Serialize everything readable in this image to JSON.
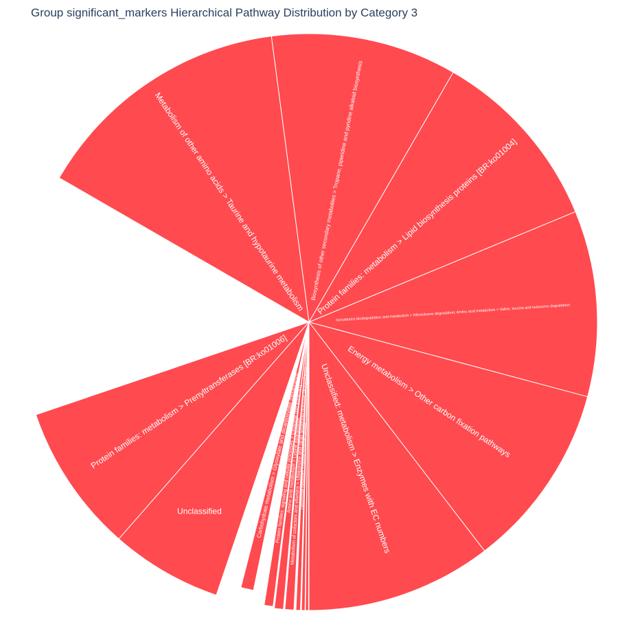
{
  "title": "Group significant_markers Hierarchical Pathway Distribution by Category 3",
  "chart_data": {
    "type": "pie",
    "subtype": "barpolar",
    "title": "Group significant_markers Hierarchical Pathway Distribution by Category 3",
    "color": "#ff4a4f",
    "line_color": "#ffffff",
    "max_value": 10,
    "slices": [
      {
        "label": "Unclassified: metabolism > Enzymes with EC numbers",
        "value": 10.0,
        "start_deg": -90.0,
        "end_deg": -52.5
      },
      {
        "label": "Energy metabolism > Other carbon fixation pathways",
        "value": 10.0,
        "start_deg": -52.5,
        "end_deg": -15.0
      },
      {
        "label": "Xenobiotics biodegradation and metabolism > Nitrotoluene degradation; Amino acid metabolism > Valine, leucine and isoleucine degradation",
        "value": 10.0,
        "start_deg": -15.0,
        "end_deg": 22.5
      },
      {
        "label": "Protein families: metabolism > Lipid biosynthesis proteins [BR:ko01004]",
        "value": 10.0,
        "start_deg": 22.5,
        "end_deg": 60.0
      },
      {
        "label": "Biosynthesis of other secondary metabolites > Tropane, piperidine and pyridine alkaloid biosynthesis",
        "value": 10.0,
        "start_deg": 60.0,
        "end_deg": 97.5
      },
      {
        "label": "Metabolism of other amino acids > Taurine and hypotaurine metabolism",
        "value": 10.0,
        "start_deg": 97.5,
        "end_deg": 150.0
      },
      {
        "label": "Protein families: metabolism > Prenyltransferases [BR:ko01006]",
        "value": 10.0,
        "start_deg": 198.75,
        "end_deg": 228.75
      },
      {
        "label": "Unclassified",
        "value": 10.0,
        "start_deg": 228.75,
        "end_deg": 251.25
      },
      {
        "label": "Carbohydrate metabolism > Glyoxylate and dicarboxylate metabolism",
        "value": 9.5,
        "start_deg": 255.6,
        "end_deg": 258.3
      },
      {
        "label": "Protein families: signaling and cellular processes > Exosome [BR:ko04147]",
        "value": 9.94,
        "start_deg": 261.0,
        "end_deg": 262.8
      },
      {
        "label": "Amino acid metabolism > Lysine degradation",
        "value": 10.0,
        "start_deg": 263.1,
        "end_deg": 264.9
      },
      {
        "label": "Metabolism of cofactors and vitamins > Ubiquinone and other terpenoid-quinone biosynthesis",
        "value": 10.0,
        "start_deg": 265.2,
        "end_deg": 267.0
      },
      {
        "label": "Carbohydrate metabolism > Pentose phosphate pathway",
        "value": 10.0,
        "start_deg": 267.4,
        "end_deg": 268.3
      },
      {
        "label": "",
        "value": 10.0,
        "start_deg": 268.5,
        "end_deg": 269.2
      },
      {
        "label": "",
        "value": 10.0,
        "start_deg": 269.3,
        "end_deg": 269.9
      }
    ]
  }
}
